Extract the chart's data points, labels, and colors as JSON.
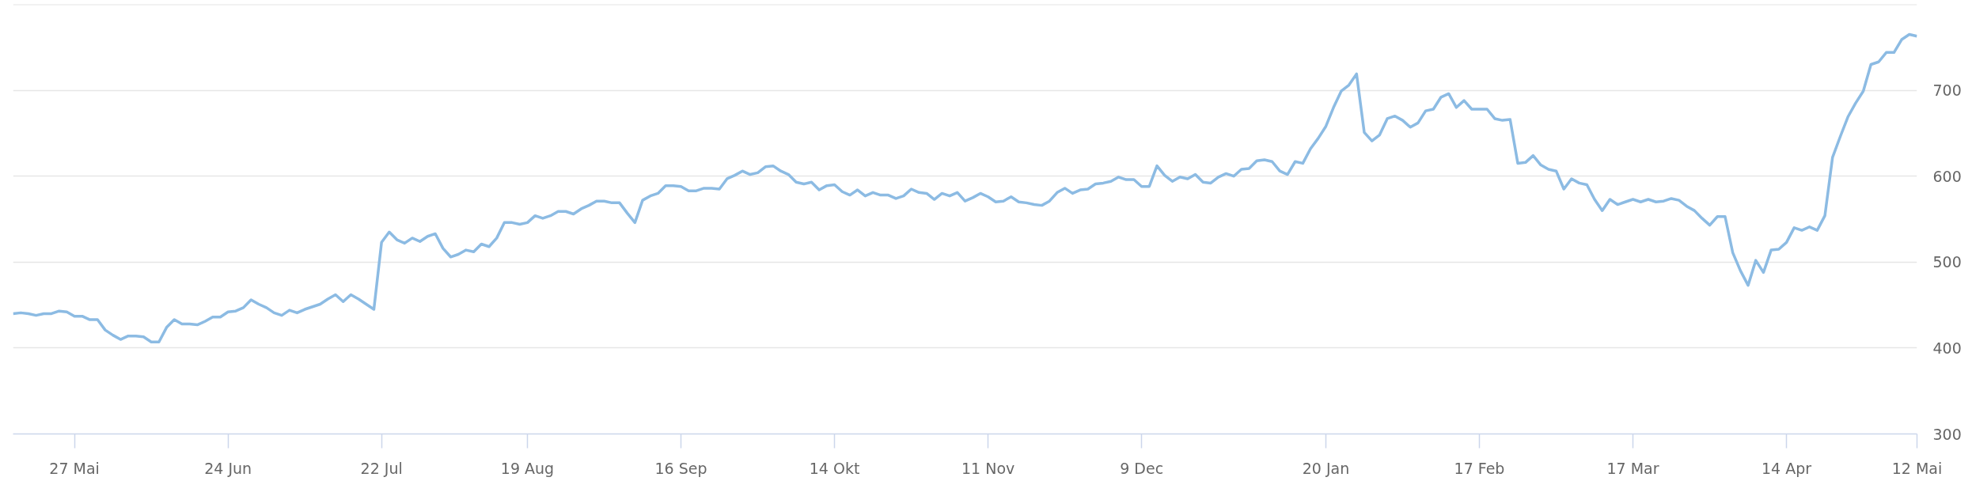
{
  "chart_data": {
    "type": "line",
    "categories": [
      null,
      null,
      null,
      null,
      null,
      null,
      null,
      null,
      "27 Mai",
      null,
      null,
      null,
      null,
      null,
      null,
      null,
      null,
      null,
      null,
      null,
      null,
      null,
      null,
      null,
      null,
      null,
      null,
      null,
      "24 Jun",
      null,
      null,
      null,
      null,
      null,
      null,
      null,
      null,
      null,
      null,
      null,
      null,
      null,
      null,
      null,
      null,
      null,
      null,
      null,
      "22 Jul",
      null,
      null,
      null,
      null,
      null,
      null,
      null,
      null,
      null,
      null,
      null,
      null,
      null,
      null,
      null,
      null,
      null,
      null,
      "19 Aug",
      null,
      null,
      null,
      null,
      null,
      null,
      null,
      null,
      null,
      null,
      null,
      null,
      null,
      null,
      null,
      null,
      null,
      null,
      null,
      "16 Sep",
      null,
      null,
      null,
      null,
      null,
      null,
      null,
      null,
      null,
      null,
      null,
      null,
      null,
      null,
      null,
      null,
      null,
      null,
      null,
      "14 Okt",
      null,
      null,
      null,
      null,
      null,
      null,
      null,
      null,
      null,
      null,
      null,
      null,
      null,
      null,
      null,
      null,
      null,
      null,
      null,
      "11 Nov",
      null,
      null,
      null,
      null,
      null,
      null,
      null,
      null,
      null,
      null,
      null,
      null,
      null,
      null,
      null,
      null,
      null,
      null,
      null,
      "9 Dec",
      null,
      null,
      null,
      null,
      null,
      null,
      null,
      null,
      null,
      null,
      null,
      null,
      null,
      null,
      null,
      null,
      null,
      null,
      null,
      null,
      null,
      null,
      null,
      "20 Jan",
      null,
      null,
      null,
      null,
      null,
      null,
      null,
      null,
      null,
      null,
      null,
      null,
      null,
      null,
      null,
      null,
      null,
      null,
      null,
      "17 Feb",
      null,
      null,
      null,
      null,
      null,
      null,
      null,
      null,
      null,
      null,
      null,
      null,
      null,
      null,
      null,
      null,
      null,
      null,
      null,
      "17 Mar",
      null,
      null,
      null,
      null,
      null,
      null,
      null,
      null,
      null,
      null,
      null,
      null,
      null,
      null,
      null,
      null,
      null,
      null,
      null,
      "14 Apr",
      null,
      null,
      null,
      null,
      null,
      null,
      null,
      null,
      null,
      null,
      null,
      null,
      null,
      null,
      null,
      null,
      "12 Mai"
    ],
    "series": [
      {
        "color": "#8cbbe3",
        "values": [
          440,
          441,
          440,
          438,
          440,
          440,
          443,
          442,
          437,
          437,
          433,
          433,
          421,
          415,
          410,
          414,
          414,
          413,
          407,
          407,
          424,
          433,
          428,
          428,
          427,
          431,
          436,
          436,
          442,
          443,
          447,
          456,
          451,
          447,
          441,
          438,
          444,
          441,
          445,
          448,
          451,
          457,
          462,
          454,
          462,
          457,
          451,
          445,
          523,
          535,
          526,
          522,
          528,
          524,
          530,
          533,
          516,
          506,
          509,
          514,
          512,
          521,
          518,
          528,
          546,
          546,
          544,
          546,
          554,
          551,
          554,
          559,
          559,
          556,
          562,
          566,
          571,
          571,
          569,
          569,
          557,
          546,
          572,
          577,
          580,
          589,
          589,
          588,
          583,
          583,
          586,
          586,
          585,
          597,
          601,
          606,
          602,
          604,
          611,
          612,
          606,
          602,
          593,
          591,
          593,
          584,
          589,
          590,
          582,
          578,
          584,
          577,
          581,
          578,
          578,
          574,
          577,
          585,
          581,
          580,
          573,
          580,
          577,
          581,
          571,
          575,
          580,
          576,
          570,
          571,
          576,
          570,
          569,
          567,
          566,
          571,
          581,
          586,
          580,
          584,
          585,
          591,
          592,
          594,
          599,
          596,
          596,
          588,
          588,
          612,
          601,
          594,
          599,
          597,
          602,
          593,
          592,
          599,
          603,
          600,
          608,
          609,
          618,
          619,
          617,
          606,
          602,
          617,
          615,
          632,
          644,
          658,
          680,
          699,
          706,
          719,
          651,
          641,
          648,
          667,
          670,
          665,
          657,
          662,
          676,
          678,
          692,
          696,
          680,
          688,
          678,
          678,
          678,
          667,
          665,
          666,
          615,
          616,
          624,
          613,
          608,
          606,
          585,
          597,
          592,
          590,
          573,
          560,
          573,
          567,
          570,
          573,
          570,
          573,
          570,
          571,
          574,
          572,
          565,
          560,
          551,
          543,
          553,
          553,
          511,
          490,
          473,
          502,
          488,
          514,
          515,
          523,
          540,
          537,
          541,
          537,
          554,
          622,
          646,
          669,
          685,
          699,
          730,
          733,
          744,
          744,
          759,
          765,
          763
        ]
      }
    ],
    "ylim": [
      300,
      800
    ],
    "yticks": [
      300,
      400,
      500,
      600,
      700,
      {
        "value": 800,
        "label": null
      }
    ],
    "grid": "y",
    "line_style": "solid"
  }
}
